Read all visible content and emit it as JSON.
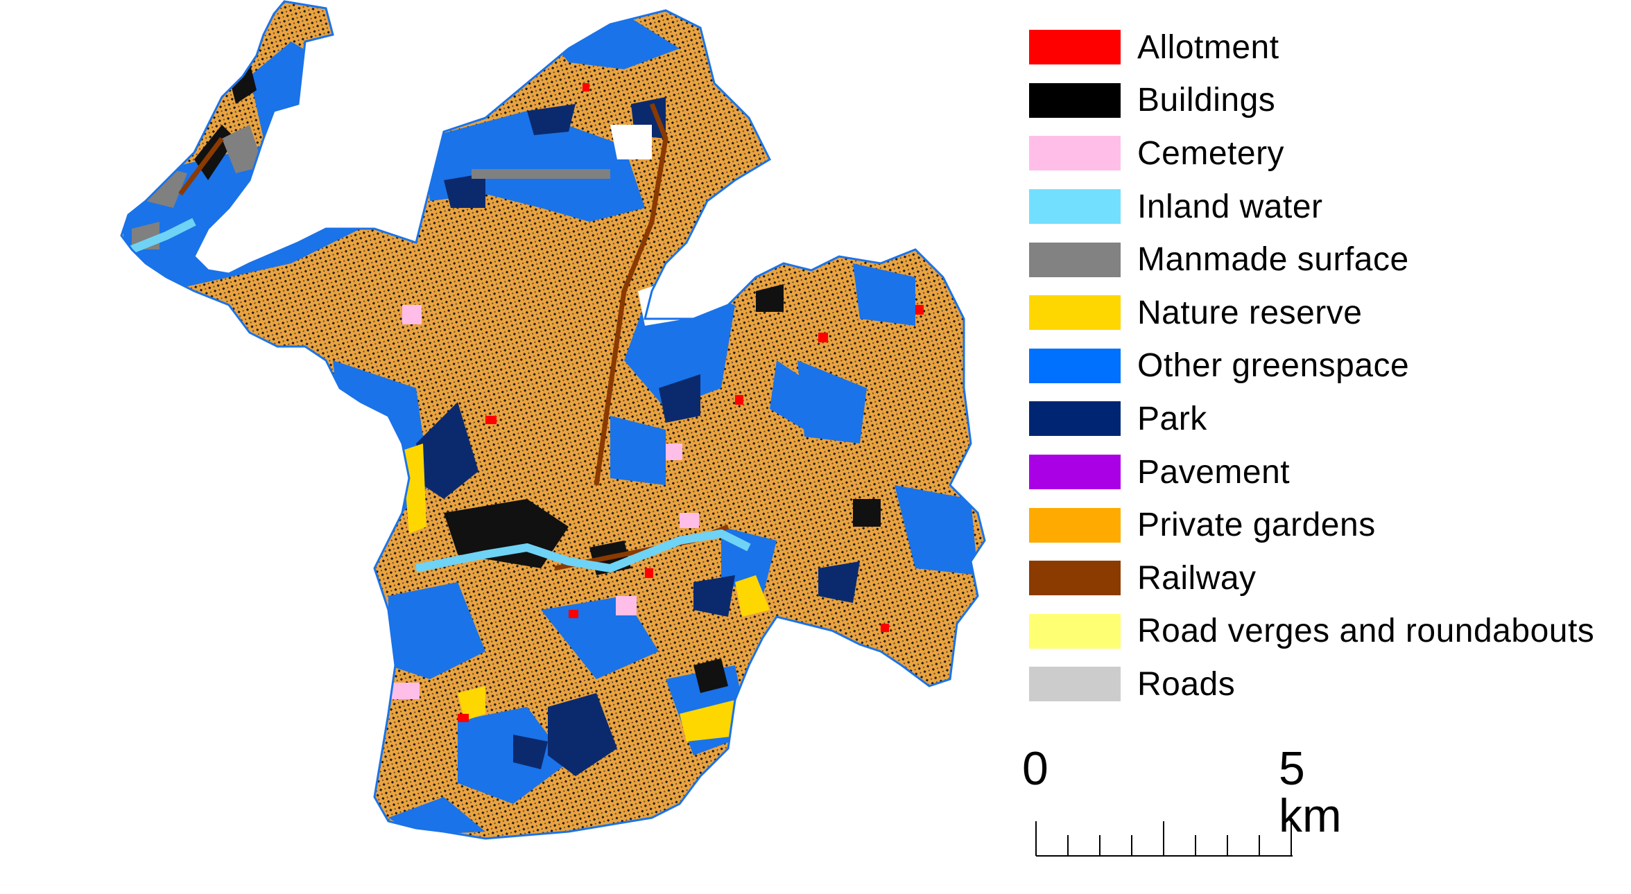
{
  "legend": {
    "items": [
      {
        "label": "Allotment",
        "color": "#ff0000"
      },
      {
        "label": "Buildings",
        "color": "#000000"
      },
      {
        "label": "Cemetery",
        "color": "#ffbee8"
      },
      {
        "label": "Inland water",
        "color": "#73dfff"
      },
      {
        "label": "Manmade surface",
        "color": "#828282"
      },
      {
        "label": "Nature reserve",
        "color": "#ffd700"
      },
      {
        "label": "Other greenspace",
        "color": "#0070ff"
      },
      {
        "label": "Park",
        "color": "#002673"
      },
      {
        "label": "Pavement",
        "color": "#a900e6"
      },
      {
        "label": "Private gardens",
        "color": "#ffaa00"
      },
      {
        "label": "Railway",
        "color": "#8b3a00"
      },
      {
        "label": "Road verges and roundabouts",
        "color": "#ffff73"
      },
      {
        "label": "Roads",
        "color": "#cccccc"
      }
    ]
  },
  "scale": {
    "left_label": "0",
    "right_label": "5 km"
  }
}
